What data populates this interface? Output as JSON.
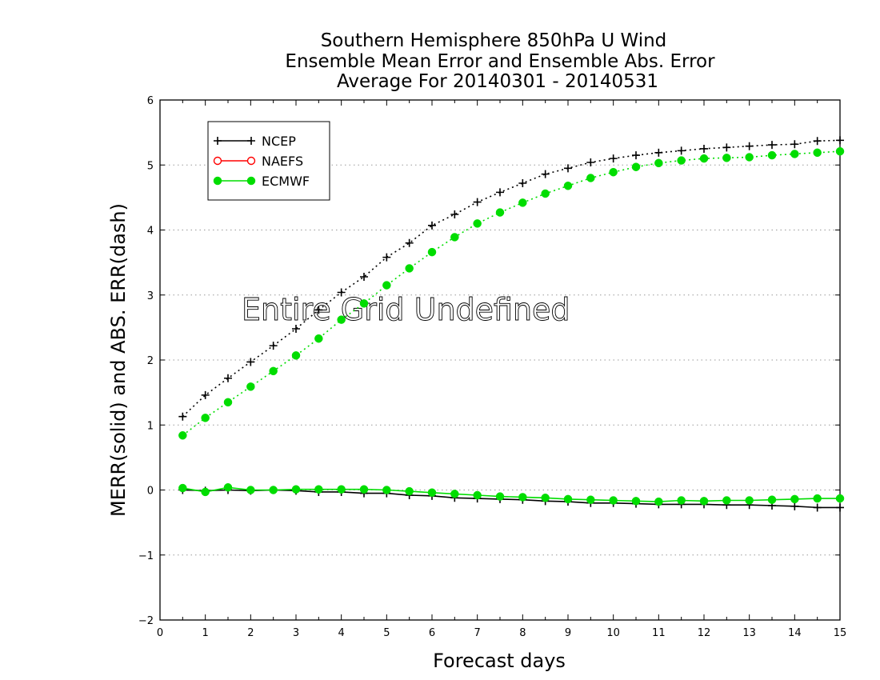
{
  "chart_data": {
    "type": "line",
    "title": [
      "Southern Hemisphere 850hPa U Wind",
      "Ensemble Mean Error and Ensemble Abs. Error",
      "Average For 20140301 - 20140531"
    ],
    "xlabel": "Forecast days",
    "ylabel": "MERR(solid) and ABS. ERR(dash)",
    "xlim": [
      0,
      15
    ],
    "ylim": [
      -2,
      6
    ],
    "xticks": [
      0,
      1,
      2,
      3,
      4,
      5,
      6,
      7,
      8,
      9,
      10,
      11,
      12,
      13,
      14,
      15
    ],
    "yticks": [
      -2,
      -1,
      0,
      1,
      2,
      3,
      4,
      5,
      6
    ],
    "ytick_labels": [
      "−2",
      "−1",
      "0",
      "1",
      "2",
      "3",
      "4",
      "5",
      "6"
    ],
    "grid_y": true,
    "legend_position": "top-left",
    "annotation": "Entire Grid Undefined",
    "x": [
      0.5,
      1,
      1.5,
      2,
      2.5,
      3,
      3.5,
      4,
      4.5,
      5,
      5.5,
      6,
      6.5,
      7,
      7.5,
      8,
      8.5,
      9,
      9.5,
      10,
      10.5,
      11,
      11.5,
      12,
      12.5,
      13,
      13.5,
      14,
      14.5,
      15
    ],
    "series": [
      {
        "name": "NCEP",
        "style": "dash",
        "marker": "plus",
        "color": "#000000",
        "values": [
          1.13,
          1.46,
          1.72,
          1.97,
          2.22,
          2.48,
          2.77,
          3.04,
          3.28,
          3.58,
          3.8,
          4.07,
          4.24,
          4.43,
          4.58,
          4.72,
          4.86,
          4.95,
          5.04,
          5.1,
          5.15,
          5.19,
          5.22,
          5.25,
          5.27,
          5.29,
          5.31,
          5.32,
          5.37,
          5.38
        ]
      },
      {
        "name": "ECMWF",
        "style": "dash",
        "marker": "dot",
        "color": "#00dd00",
        "values": [
          0.84,
          1.11,
          1.35,
          1.59,
          1.83,
          2.07,
          2.33,
          2.62,
          2.87,
          3.15,
          3.41,
          3.66,
          3.89,
          4.1,
          4.27,
          4.42,
          4.56,
          4.68,
          4.8,
          4.89,
          4.97,
          5.03,
          5.07,
          5.1,
          5.11,
          5.12,
          5.15,
          5.17,
          5.19,
          5.21
        ]
      },
      {
        "name": "NCEP",
        "style": "solid",
        "marker": "plus",
        "color": "#000000",
        "values": [
          0.0,
          -0.01,
          0.0,
          -0.01,
          0.0,
          -0.01,
          -0.03,
          -0.03,
          -0.05,
          -0.05,
          -0.08,
          -0.09,
          -0.12,
          -0.13,
          -0.14,
          -0.15,
          -0.17,
          -0.18,
          -0.2,
          -0.2,
          -0.21,
          -0.22,
          -0.22,
          -0.22,
          -0.23,
          -0.23,
          -0.24,
          -0.25,
          -0.27,
          -0.27
        ]
      },
      {
        "name": "ECMWF",
        "style": "solid",
        "marker": "dot",
        "color": "#00dd00",
        "values": [
          0.03,
          -0.03,
          0.04,
          0.0,
          0.0,
          0.01,
          0.01,
          0.01,
          0.01,
          0.0,
          -0.02,
          -0.04,
          -0.06,
          -0.08,
          -0.1,
          -0.11,
          -0.12,
          -0.14,
          -0.15,
          -0.16,
          -0.17,
          -0.18,
          -0.16,
          -0.17,
          -0.16,
          -0.16,
          -0.15,
          -0.14,
          -0.13,
          -0.13
        ]
      }
    ],
    "legend": [
      {
        "name": "NCEP",
        "color": "#000000",
        "marker": "plus"
      },
      {
        "name": "NAEFS",
        "color": "#ff0000",
        "marker": "open-circle"
      },
      {
        "name": "ECMWF",
        "color": "#00dd00",
        "marker": "dot"
      }
    ]
  }
}
